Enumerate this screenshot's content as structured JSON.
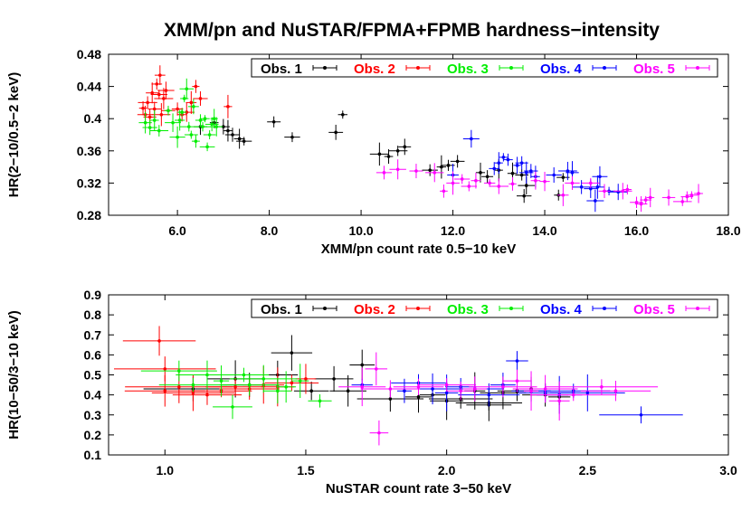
{
  "colors": {
    "obs1": "#000000",
    "obs2": "#ff0000",
    "obs3": "#00ee00",
    "obs4": "#0000ff",
    "obs5": "#ff00ff"
  },
  "title": "XMM/pn and NuSTAR/FPMA+FPMB hardness−intensity",
  "chart_data": [
    {
      "type": "scatter",
      "xlabel": "XMM/pn count rate 0.5−10 keV",
      "ylabel": "HR(2−10/0.5−2 keV)",
      "xlim": [
        4.5,
        18.0
      ],
      "ylim": [
        0.28,
        0.48
      ],
      "xticks": [
        "6.0",
        "8.0",
        "10.0",
        "12.0",
        "14.0",
        "16.0",
        "18.0"
      ],
      "yticks": [
        "0.28",
        "0.32",
        "0.36",
        "0.4",
        "0.44",
        "0.48"
      ],
      "legend": "top",
      "series": [
        {
          "name": "Obs. 1",
          "color": "#000000",
          "points": [
            [
              6.5,
              0.39
            ],
            [
              6.8,
              0.395
            ],
            [
              7.0,
              0.39
            ],
            [
              7.1,
              0.385
            ],
            [
              7.2,
              0.38
            ],
            [
              7.35,
              0.375
            ],
            [
              7.45,
              0.372
            ],
            [
              8.1,
              0.396
            ],
            [
              8.5,
              0.377
            ],
            [
              9.45,
              0.383
            ],
            [
              9.6,
              0.405
            ],
            [
              10.4,
              0.356
            ],
            [
              10.6,
              0.353
            ],
            [
              10.8,
              0.36
            ],
            [
              10.95,
              0.365
            ],
            [
              11.5,
              0.336
            ],
            [
              11.75,
              0.34
            ],
            [
              11.9,
              0.342
            ],
            [
              12.1,
              0.347
            ],
            [
              12.6,
              0.333
            ],
            [
              12.75,
              0.328
            ],
            [
              13.0,
              0.336
            ],
            [
              13.3,
              0.332
            ],
            [
              13.5,
              0.33
            ],
            [
              13.55,
              0.304
            ],
            [
              13.6,
              0.317
            ],
            [
              14.3,
              0.305
            ],
            [
              14.4,
              0.327
            ]
          ]
        },
        {
          "name": "Obs. 2",
          "color": "#ff0000",
          "points": [
            [
              5.25,
              0.413
            ],
            [
              5.3,
              0.405
            ],
            [
              5.35,
              0.42
            ],
            [
              5.4,
              0.402
            ],
            [
              5.45,
              0.432
            ],
            [
              5.5,
              0.412
            ],
            [
              5.55,
              0.443
            ],
            [
              5.6,
              0.43
            ],
            [
              5.62,
              0.454
            ],
            [
              5.65,
              0.405
            ],
            [
              5.7,
              0.425
            ],
            [
              5.75,
              0.435
            ],
            [
              5.8,
              0.41
            ],
            [
              6.0,
              0.412
            ],
            [
              6.1,
              0.405
            ],
            [
              6.2,
              0.408
            ],
            [
              6.3,
              0.42
            ],
            [
              6.4,
              0.44
            ],
            [
              6.5,
              0.425
            ],
            [
              7.1,
              0.415
            ]
          ]
        },
        {
          "name": "Obs. 3",
          "color": "#00ee00",
          "points": [
            [
              5.3,
              0.395
            ],
            [
              5.4,
              0.389
            ],
            [
              5.5,
              0.398
            ],
            [
              5.6,
              0.385
            ],
            [
              5.8,
              0.41
            ],
            [
              5.9,
              0.395
            ],
            [
              6.0,
              0.377
            ],
            [
              6.05,
              0.398
            ],
            [
              6.1,
              0.408
            ],
            [
              6.15,
              0.425
            ],
            [
              6.2,
              0.437
            ],
            [
              6.25,
              0.39
            ],
            [
              6.3,
              0.38
            ],
            [
              6.35,
              0.415
            ],
            [
              6.4,
              0.372
            ],
            [
              6.5,
              0.398
            ],
            [
              6.55,
              0.39
            ],
            [
              6.6,
              0.4
            ],
            [
              6.65,
              0.365
            ],
            [
              6.7,
              0.38
            ],
            [
              6.75,
              0.393
            ],
            [
              6.8,
              0.4
            ],
            [
              6.85,
              0.39
            ]
          ]
        },
        {
          "name": "Obs. 4",
          "color": "#0000ff",
          "points": [
            [
              12.0,
              0.33
            ],
            [
              12.4,
              0.375
            ],
            [
              12.9,
              0.338
            ],
            [
              13.0,
              0.345
            ],
            [
              13.1,
              0.352
            ],
            [
              13.2,
              0.349
            ],
            [
              13.4,
              0.342
            ],
            [
              13.5,
              0.345
            ],
            [
              13.6,
              0.333
            ],
            [
              13.7,
              0.335
            ],
            [
              13.8,
              0.328
            ],
            [
              14.2,
              0.33
            ],
            [
              14.5,
              0.335
            ],
            [
              14.6,
              0.333
            ],
            [
              14.8,
              0.315
            ],
            [
              15.0,
              0.313
            ],
            [
              15.1,
              0.298
            ],
            [
              15.15,
              0.315
            ],
            [
              15.2,
              0.328
            ],
            [
              15.4,
              0.31
            ],
            [
              15.6,
              0.309
            ]
          ]
        },
        {
          "name": "Obs. 5",
          "color": "#ff00ff",
          "points": [
            [
              10.5,
              0.333
            ],
            [
              10.8,
              0.337
            ],
            [
              11.2,
              0.335
            ],
            [
              11.6,
              0.333
            ],
            [
              11.8,
              0.31
            ],
            [
              12.0,
              0.32
            ],
            [
              12.2,
              0.325
            ],
            [
              12.35,
              0.316
            ],
            [
              12.5,
              0.323
            ],
            [
              12.8,
              0.32
            ],
            [
              13.0,
              0.316
            ],
            [
              13.3,
              0.319
            ],
            [
              13.8,
              0.323
            ],
            [
              14.0,
              0.322
            ],
            [
              14.4,
              0.305
            ],
            [
              14.6,
              0.32
            ],
            [
              15.0,
              0.32
            ],
            [
              15.3,
              0.31
            ],
            [
              15.7,
              0.31
            ],
            [
              15.8,
              0.312
            ],
            [
              16.0,
              0.296
            ],
            [
              16.1,
              0.294
            ],
            [
              16.2,
              0.299
            ],
            [
              16.3,
              0.302
            ],
            [
              16.7,
              0.302
            ],
            [
              17.0,
              0.297
            ],
            [
              17.1,
              0.303
            ],
            [
              17.2,
              0.305
            ],
            [
              17.35,
              0.307
            ]
          ]
        }
      ]
    },
    {
      "type": "scatter",
      "xlabel": "NuSTAR count rate 3−50 keV",
      "ylabel": "HR(10−50/3−10 keV)",
      "xlim": [
        0.8,
        3.0
      ],
      "ylim": [
        0.1,
        0.9
      ],
      "xticks": [
        "1.0",
        "1.5",
        "2.0",
        "2.5",
        "3.0"
      ],
      "yticks": [
        "0.1",
        "0.2",
        "0.3",
        "0.4",
        "0.5",
        "0.6",
        "0.7",
        "0.8",
        "0.9"
      ],
      "legend": "top",
      "series": [
        {
          "name": "Obs. 1",
          "color": "#000000",
          "points": [
            [
              1.1,
              0.43
            ],
            [
              1.25,
              0.48
            ],
            [
              1.3,
              0.45
            ],
            [
              1.4,
              0.5
            ],
            [
              1.45,
              0.61
            ],
            [
              1.52,
              0.42
            ],
            [
              1.6,
              0.48
            ],
            [
              1.7,
              0.55
            ],
            [
              1.65,
              0.42
            ],
            [
              1.8,
              0.38
            ],
            [
              1.9,
              0.39
            ],
            [
              1.95,
              0.4
            ],
            [
              2.0,
              0.37
            ],
            [
              2.05,
              0.38
            ],
            [
              2.1,
              0.42
            ],
            [
              2.15,
              0.36
            ],
            [
              2.2,
              0.41
            ],
            [
              2.25,
              0.42
            ],
            [
              2.3,
              0.43
            ],
            [
              2.35,
              0.4
            ],
            [
              2.15,
              0.35
            ],
            [
              2.4,
              0.39
            ]
          ]
        },
        {
          "name": "Obs. 2",
          "color": "#ff0000",
          "points": [
            [
              0.98,
              0.67
            ],
            [
              1.0,
              0.53
            ],
            [
              1.0,
              0.42
            ],
            [
              1.05,
              0.44
            ],
            [
              1.1,
              0.41
            ],
            [
              1.15,
              0.4
            ],
            [
              1.2,
              0.42
            ],
            [
              1.25,
              0.44
            ],
            [
              1.3,
              0.43
            ],
            [
              1.35,
              0.45
            ],
            [
              1.4,
              0.44
            ],
            [
              1.45,
              0.46
            ],
            [
              1.5,
              0.48
            ]
          ]
        },
        {
          "name": "Obs. 3",
          "color": "#00ee00",
          "points": [
            [
              1.05,
              0.52
            ],
            [
              1.1,
              0.45
            ],
            [
              1.15,
              0.5
            ],
            [
              1.2,
              0.47
            ],
            [
              1.24,
              0.34
            ],
            [
              1.28,
              0.5
            ],
            [
              1.3,
              0.45
            ],
            [
              1.35,
              0.48
            ],
            [
              1.4,
              0.42
            ],
            [
              1.43,
              0.44
            ],
            [
              1.48,
              0.47
            ],
            [
              1.55,
              0.37
            ]
          ]
        },
        {
          "name": "Obs. 4",
          "color": "#0000ff",
          "points": [
            [
              1.7,
              0.45
            ],
            [
              1.85,
              0.42
            ],
            [
              1.9,
              0.46
            ],
            [
              1.95,
              0.43
            ],
            [
              2.0,
              0.41
            ],
            [
              2.05,
              0.44
            ],
            [
              2.1,
              0.43
            ],
            [
              2.15,
              0.4
            ],
            [
              2.2,
              0.45
            ],
            [
              2.25,
              0.57
            ],
            [
              2.3,
              0.42
            ],
            [
              2.35,
              0.41
            ],
            [
              2.4,
              0.4
            ],
            [
              2.45,
              0.42
            ],
            [
              2.5,
              0.41
            ],
            [
              2.69,
              0.3
            ]
          ]
        },
        {
          "name": "Obs. 5",
          "color": "#ff00ff",
          "points": [
            [
              1.7,
              0.44
            ],
            [
              1.75,
              0.53
            ],
            [
              1.76,
              0.21
            ],
            [
              1.8,
              0.43
            ],
            [
              1.9,
              0.44
            ],
            [
              2.0,
              0.45
            ],
            [
              2.05,
              0.42
            ],
            [
              2.1,
              0.43
            ],
            [
              2.2,
              0.44
            ],
            [
              2.25,
              0.47
            ],
            [
              2.3,
              0.42
            ],
            [
              2.35,
              0.43
            ],
            [
              2.4,
              0.37
            ],
            [
              2.45,
              0.4
            ],
            [
              2.55,
              0.44
            ],
            [
              2.6,
              0.42
            ]
          ]
        }
      ]
    }
  ]
}
